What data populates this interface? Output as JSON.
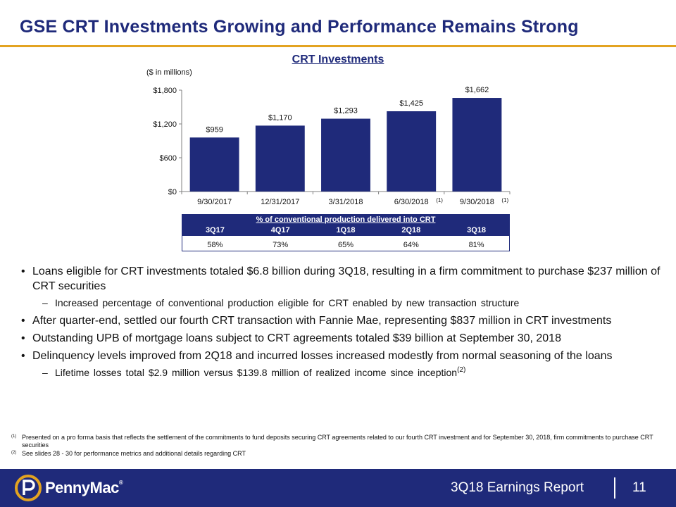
{
  "header": {
    "title": "GSE CRT Investments Growing and Performance Remains Strong"
  },
  "chart_data": {
    "type": "bar",
    "title": "CRT Investments",
    "units_label": "($ in millions)",
    "categories": [
      "9/30/2017",
      "12/31/2017",
      "3/31/2018",
      "6/30/2018",
      "9/30/2018"
    ],
    "category_footnotes": [
      "",
      "",
      "",
      "(1)",
      "(1)"
    ],
    "values": [
      959,
      1170,
      1293,
      1425,
      1662
    ],
    "data_labels": [
      "$959",
      "$1,170",
      "$1,293",
      "$1,425",
      "$1,662"
    ],
    "y_ticks": [
      0,
      600,
      1200,
      1800
    ],
    "y_tick_labels": [
      "$0",
      "$600",
      "$1,200",
      "$1,800"
    ],
    "ylim": [
      0,
      1800
    ],
    "xlabel": "",
    "ylabel": "",
    "bar_color": "#1f2a7a",
    "grid": false,
    "legend": "none"
  },
  "crt_table": {
    "caption": "% of conventional production delivered into CRT",
    "headers": [
      "3Q17",
      "4Q17",
      "1Q18",
      "2Q18",
      "3Q18"
    ],
    "values": [
      "58%",
      "73%",
      "65%",
      "64%",
      "81%"
    ]
  },
  "bullets": {
    "b1": "Loans eligible for CRT investments totaled $6.8 billion during 3Q18, resulting in a firm commitment to purchase $237 million of CRT securities",
    "b1_sub": "Increased percentage of conventional production eligible for CRT enabled by new transaction structure",
    "b2": "After quarter-end, settled our fourth CRT transaction with Fannie Mae, representing $837 million in CRT investments",
    "b3": "Outstanding UPB of mortgage loans subject to CRT agreements totaled $39 billion at September 30, 2018",
    "b4": "Delinquency levels improved from 2Q18 and incurred losses increased modestly from normal seasoning of the loans",
    "b4_sub": "Lifetime losses total $2.9 million versus $139.8 million of realized income since inception",
    "b4_sub_note": "(2)"
  },
  "footnotes": [
    {
      "mark": "(1)",
      "text": "Presented on a pro forma basis that reflects the settlement of the commitments to fund deposits securing CRT agreements related to our fourth CRT investment and for September 30, 2018, firm commitments to purchase CRT securities"
    },
    {
      "mark": "(2)",
      "text": "See slides 28 - 30 for performance metrics and additional details regarding CRT"
    }
  ],
  "footer": {
    "brand": "PennyMac",
    "brand_reg": "®",
    "report_label": "3Q18 Earnings Report",
    "page_number": "11"
  },
  "colors": {
    "brand_navy": "#1f2a7a",
    "accent_gold": "#e3a321"
  }
}
